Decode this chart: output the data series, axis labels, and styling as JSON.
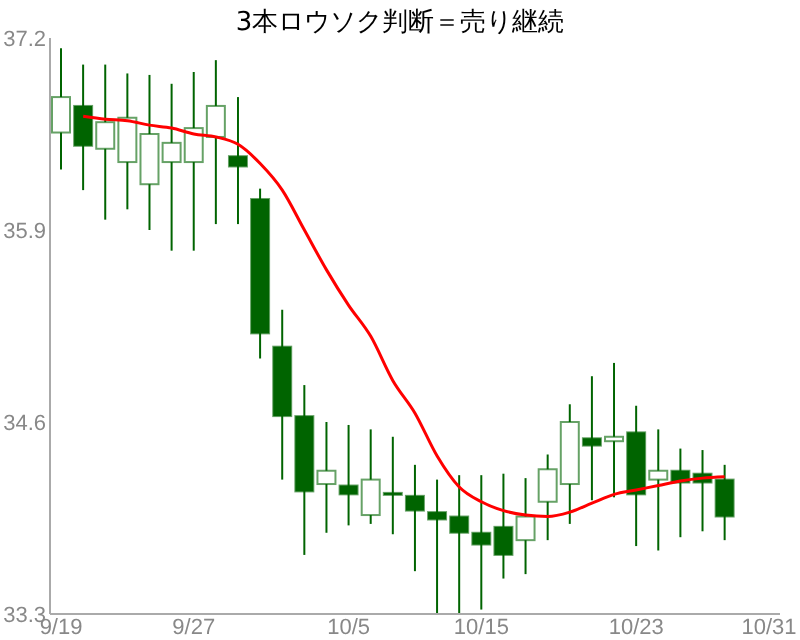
{
  "chart_data": {
    "type": "candlestick",
    "title": "3本ロウソク判断＝売り継続",
    "categories": [
      "9/19",
      null,
      null,
      null,
      null,
      null,
      "9/27",
      null,
      null,
      null,
      null,
      null,
      null,
      "10/5",
      null,
      null,
      null,
      null,
      null,
      "10/15",
      null,
      null,
      null,
      null,
      null,
      null,
      "10/23",
      null,
      null,
      null,
      null,
      null,
      "10/31"
    ],
    "ylim": [
      33.3,
      37.2
    ],
    "yticks": [
      33.3,
      34.6,
      35.9,
      37.2
    ],
    "grid": false,
    "legend": false,
    "series": [
      {
        "color": "#006400",
        "ohlc": [
          [
            36.56,
            37.13,
            36.31,
            36.8
          ],
          [
            36.74,
            37.02,
            36.17,
            36.47
          ],
          [
            36.45,
            37.02,
            35.97,
            36.63
          ],
          [
            36.36,
            36.96,
            36.04,
            36.66
          ],
          [
            36.21,
            36.95,
            35.9,
            36.55
          ],
          [
            36.36,
            36.89,
            35.76,
            36.49
          ],
          [
            36.36,
            36.97,
            35.76,
            36.59
          ],
          [
            36.53,
            37.05,
            35.94,
            36.74
          ],
          [
            36.4,
            36.8,
            35.94,
            36.33
          ],
          [
            36.11,
            36.18,
            35.03,
            35.2
          ],
          [
            35.11,
            35.36,
            34.21,
            34.64
          ],
          [
            34.64,
            34.85,
            33.7,
            34.13
          ],
          [
            34.18,
            34.6,
            33.85,
            34.27
          ],
          [
            34.17,
            34.58,
            33.9,
            34.11
          ],
          [
            33.97,
            34.55,
            33.91,
            34.21
          ],
          [
            34.12,
            34.5,
            33.84,
            34.11
          ],
          [
            34.1,
            34.31,
            33.59,
            34.0
          ],
          [
            33.99,
            34.21,
            33.3,
            33.94
          ],
          [
            33.96,
            34.24,
            33.3,
            33.85
          ],
          [
            33.85,
            34.24,
            33.33,
            33.77
          ],
          [
            33.89,
            34.25,
            33.54,
            33.7
          ],
          [
            33.8,
            34.22,
            33.57,
            33.96
          ],
          [
            34.06,
            34.38,
            33.8,
            34.28
          ],
          [
            34.18,
            34.72,
            33.91,
            34.6
          ],
          [
            34.49,
            34.91,
            34.07,
            34.44
          ],
          [
            34.47,
            35.0,
            34.09,
            34.5
          ],
          [
            34.53,
            34.71,
            33.76,
            34.11
          ],
          [
            34.21,
            34.55,
            33.73,
            34.27
          ],
          [
            34.27,
            34.42,
            33.82,
            34.19
          ],
          [
            34.25,
            34.41,
            33.86,
            34.19
          ],
          [
            34.21,
            34.31,
            33.8,
            33.96
          ],
          null,
          null
        ]
      },
      {
        "type": "line",
        "color": "#ff0000",
        "marker": "none",
        "values": [
          null,
          36.67,
          36.65,
          36.64,
          36.61,
          36.59,
          36.55,
          36.53,
          36.48,
          36.35,
          36.17,
          35.9,
          35.63,
          35.39,
          35.18,
          34.88,
          34.66,
          34.37,
          34.16,
          34.06,
          34.0,
          33.97,
          33.96,
          33.99,
          34.05,
          34.11,
          34.14,
          34.17,
          34.2,
          34.22,
          34.23,
          null,
          null
        ]
      }
    ]
  }
}
